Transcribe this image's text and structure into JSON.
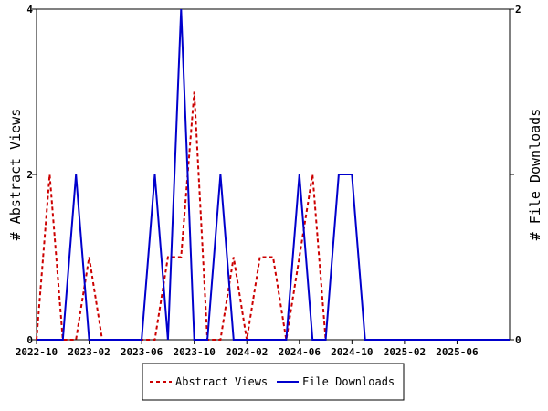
{
  "chart_data": {
    "type": "line",
    "x_axis": {
      "start": "2022-10",
      "end": "2025-10",
      "ticks": [
        "2022-10",
        "2023-02",
        "2023-06",
        "2023-10",
        "2024-02",
        "2024-06",
        "2024-10",
        "2025-02",
        "2025-06"
      ]
    },
    "y_left": {
      "label": "# Abstract Views",
      "ylim": [
        0,
        4
      ],
      "ticks": [
        "0",
        "2",
        "4"
      ]
    },
    "y_right": {
      "label": "# File Downloads",
      "ylim": [
        0,
        2
      ],
      "ticks": [
        "0",
        "1",
        "2"
      ]
    },
    "legend": {
      "placement": "bottom-center"
    },
    "series": [
      {
        "name": "Abstract Views",
        "axis": "left",
        "color": "#cc0000",
        "dash": "dashed",
        "x": [
          "2022-10",
          "2022-11",
          "2022-12",
          "2023-01",
          "2023-02",
          "2023-03",
          "2023-04",
          "2023-05",
          "2023-06",
          "2023-07",
          "2023-08",
          "2023-09",
          "2023-10",
          "2023-11",
          "2023-12",
          "2024-01",
          "2024-02",
          "2024-03",
          "2024-04",
          "2024-05",
          "2024-06",
          "2024-07",
          "2024-08"
        ],
        "values": [
          0,
          2,
          0,
          0,
          1,
          0,
          0,
          0,
          0,
          0,
          1,
          1,
          3,
          0,
          0,
          1,
          0,
          1,
          1,
          0,
          1,
          2,
          0
        ]
      },
      {
        "name": "File Downloads",
        "axis": "right",
        "color": "#0000cc",
        "dash": "solid",
        "x": [
          "2022-10",
          "2022-11",
          "2022-12",
          "2023-01",
          "2023-02",
          "2023-03",
          "2023-04",
          "2023-05",
          "2023-06",
          "2023-07",
          "2023-08",
          "2023-09",
          "2023-10",
          "2023-11",
          "2023-12",
          "2024-01",
          "2024-02",
          "2024-03",
          "2024-04",
          "2024-05",
          "2024-06",
          "2024-07",
          "2024-08",
          "2024-09",
          "2024-10",
          "2024-11",
          "2024-12",
          "2025-01",
          "2025-02",
          "2025-03",
          "2025-04",
          "2025-05",
          "2025-06",
          "2025-07",
          "2025-08",
          "2025-09",
          "2025-10"
        ],
        "values": [
          0,
          0,
          0,
          1,
          0,
          0,
          0,
          0,
          0,
          1,
          0,
          2,
          0,
          0,
          1,
          0,
          0,
          0,
          0,
          0,
          1,
          0,
          0,
          1,
          1,
          0,
          0,
          0,
          0,
          0,
          0,
          0,
          0,
          0,
          0,
          0,
          0
        ]
      }
    ],
    "grid": false
  }
}
